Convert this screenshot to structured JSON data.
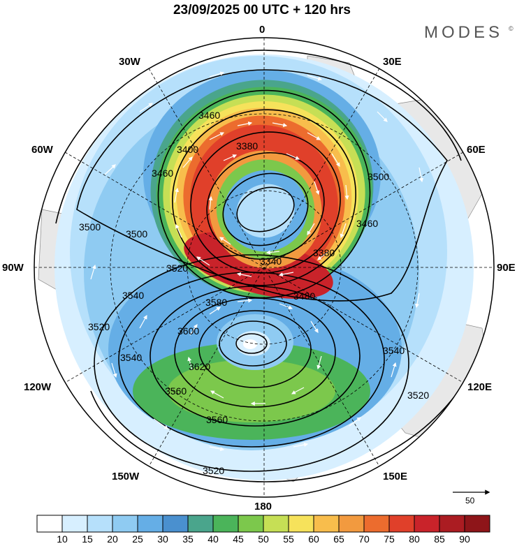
{
  "title": "23/09/2025  00 UTC  + 120 hrs",
  "brand": "MODES",
  "brand_mark": "©",
  "longitude_labels": {
    "lon_0": "0",
    "lon_30e": "30E",
    "lon_60e": "60E",
    "lon_90e": "90E",
    "lon_120e": "120E",
    "lon_150e": "150E",
    "lon_180": "180",
    "lon_150w": "150W",
    "lon_120w": "120W",
    "lon_90w": "90W",
    "lon_60w": "60W",
    "lon_30w": "30W"
  },
  "contour_labels": [
    "3460",
    "3380",
    "3400",
    "3460",
    "3500",
    "3500",
    "3500",
    "3460",
    "3340",
    "3380",
    "3520",
    "3480",
    "3540",
    "3580",
    "3520",
    "3600",
    "3540",
    "3620",
    "3540",
    "3560",
    "3520",
    "3560",
    "3520"
  ],
  "colorbar": {
    "labels": [
      "10",
      "15",
      "20",
      "25",
      "30",
      "35",
      "40",
      "45",
      "50",
      "55",
      "60",
      "65",
      "70",
      "75",
      "80",
      "85",
      "90"
    ],
    "colors": [
      "#ffffff",
      "#d7efff",
      "#b6e0fb",
      "#8fcbf2",
      "#65aee6",
      "#4a90cf",
      "#4aa58c",
      "#4bb45a",
      "#7cc84c",
      "#c6df55",
      "#f6e25b",
      "#f8bd4c",
      "#f29a3f",
      "#ec6c2e",
      "#e0402a",
      "#c9232a",
      "#ab1c22",
      "#8e1519"
    ]
  },
  "reference_vector": "50"
}
